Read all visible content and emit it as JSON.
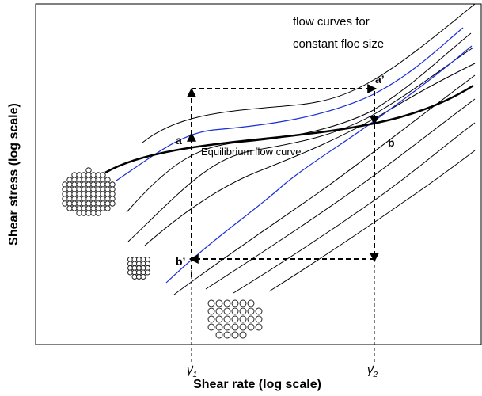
{
  "title_lines": [
    "flow curves for",
    "constant floc size"
  ],
  "labels": {
    "a": "a",
    "a_prime": "a’",
    "b": "b",
    "b_prime": "b’",
    "equilibrium": "Equilibrium flow curve"
  },
  "axes": {
    "y_title": "Shear stress (log scale)",
    "x_title": "Shear rate (log scale)"
  },
  "x_ticks": [
    {
      "symbol": "γ̇",
      "sub": "1"
    },
    {
      "symbol": "γ̇",
      "sub": "2"
    }
  ]
}
